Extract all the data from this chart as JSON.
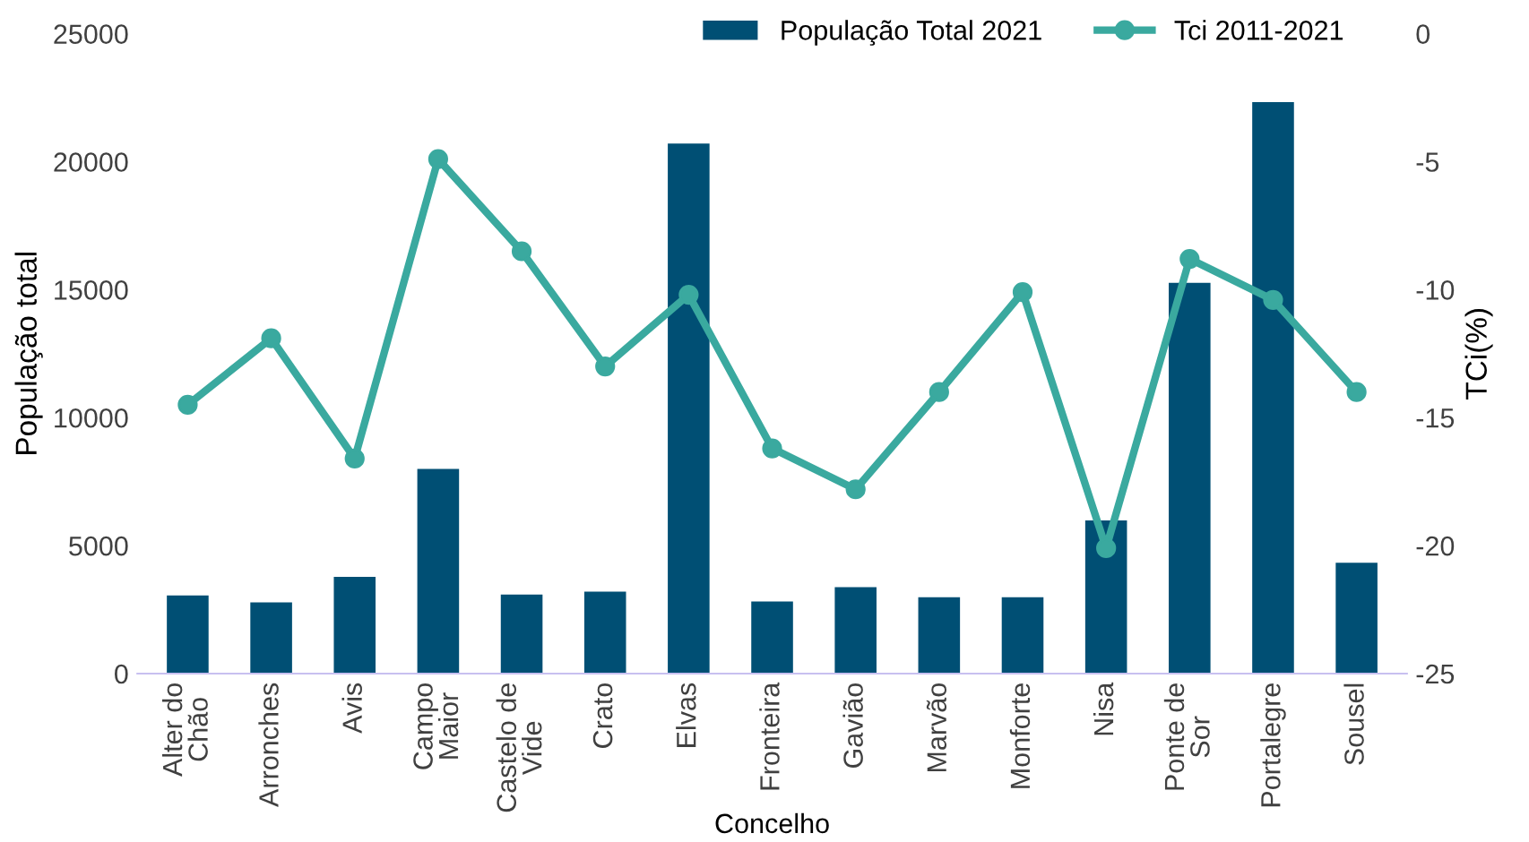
{
  "chart_data": {
    "type": "bar",
    "xlabel": "Concelho",
    "ylabel": "População total",
    "y2label": "TCi(%)",
    "categories": [
      "Alter do\nChão",
      "Arronches",
      "Avis",
      "Campo\nMaior",
      "Castelo de\nVide",
      "Crato",
      "Elvas",
      "Fronteira",
      "Gavião",
      "Marvão",
      "Monforte",
      "Nisa",
      "Ponte de\nSor",
      "Portalegre",
      "Sousel"
    ],
    "series": [
      {
        "name": "População Total 2021",
        "color": "#004f74",
        "values": [
          3050,
          2780,
          3780,
          8000,
          3090,
          3200,
          20710,
          2820,
          3380,
          2980,
          2980,
          5980,
          15270,
          22330,
          4330
        ]
      },
      {
        "name": "Tci 2011-2021",
        "type": "line",
        "axis": "y2",
        "color": "#3aa99f",
        "marker": "circle",
        "values": [
          -14.5,
          -11.9,
          -16.6,
          -4.9,
          -8.5,
          -13.0,
          -10.2,
          -16.2,
          -17.8,
          -14.0,
          -10.1,
          -20.1,
          -8.8,
          -10.4,
          -14.0
        ]
      }
    ],
    "ylim": [
      0,
      25000
    ],
    "yticks": [
      0,
      5000,
      10000,
      15000,
      20000,
      25000
    ],
    "y2lim": [
      -25,
      0
    ],
    "y2ticks": [
      -25,
      -20,
      -15,
      -10,
      -5,
      0
    ],
    "legend": "top right",
    "grid": false
  }
}
